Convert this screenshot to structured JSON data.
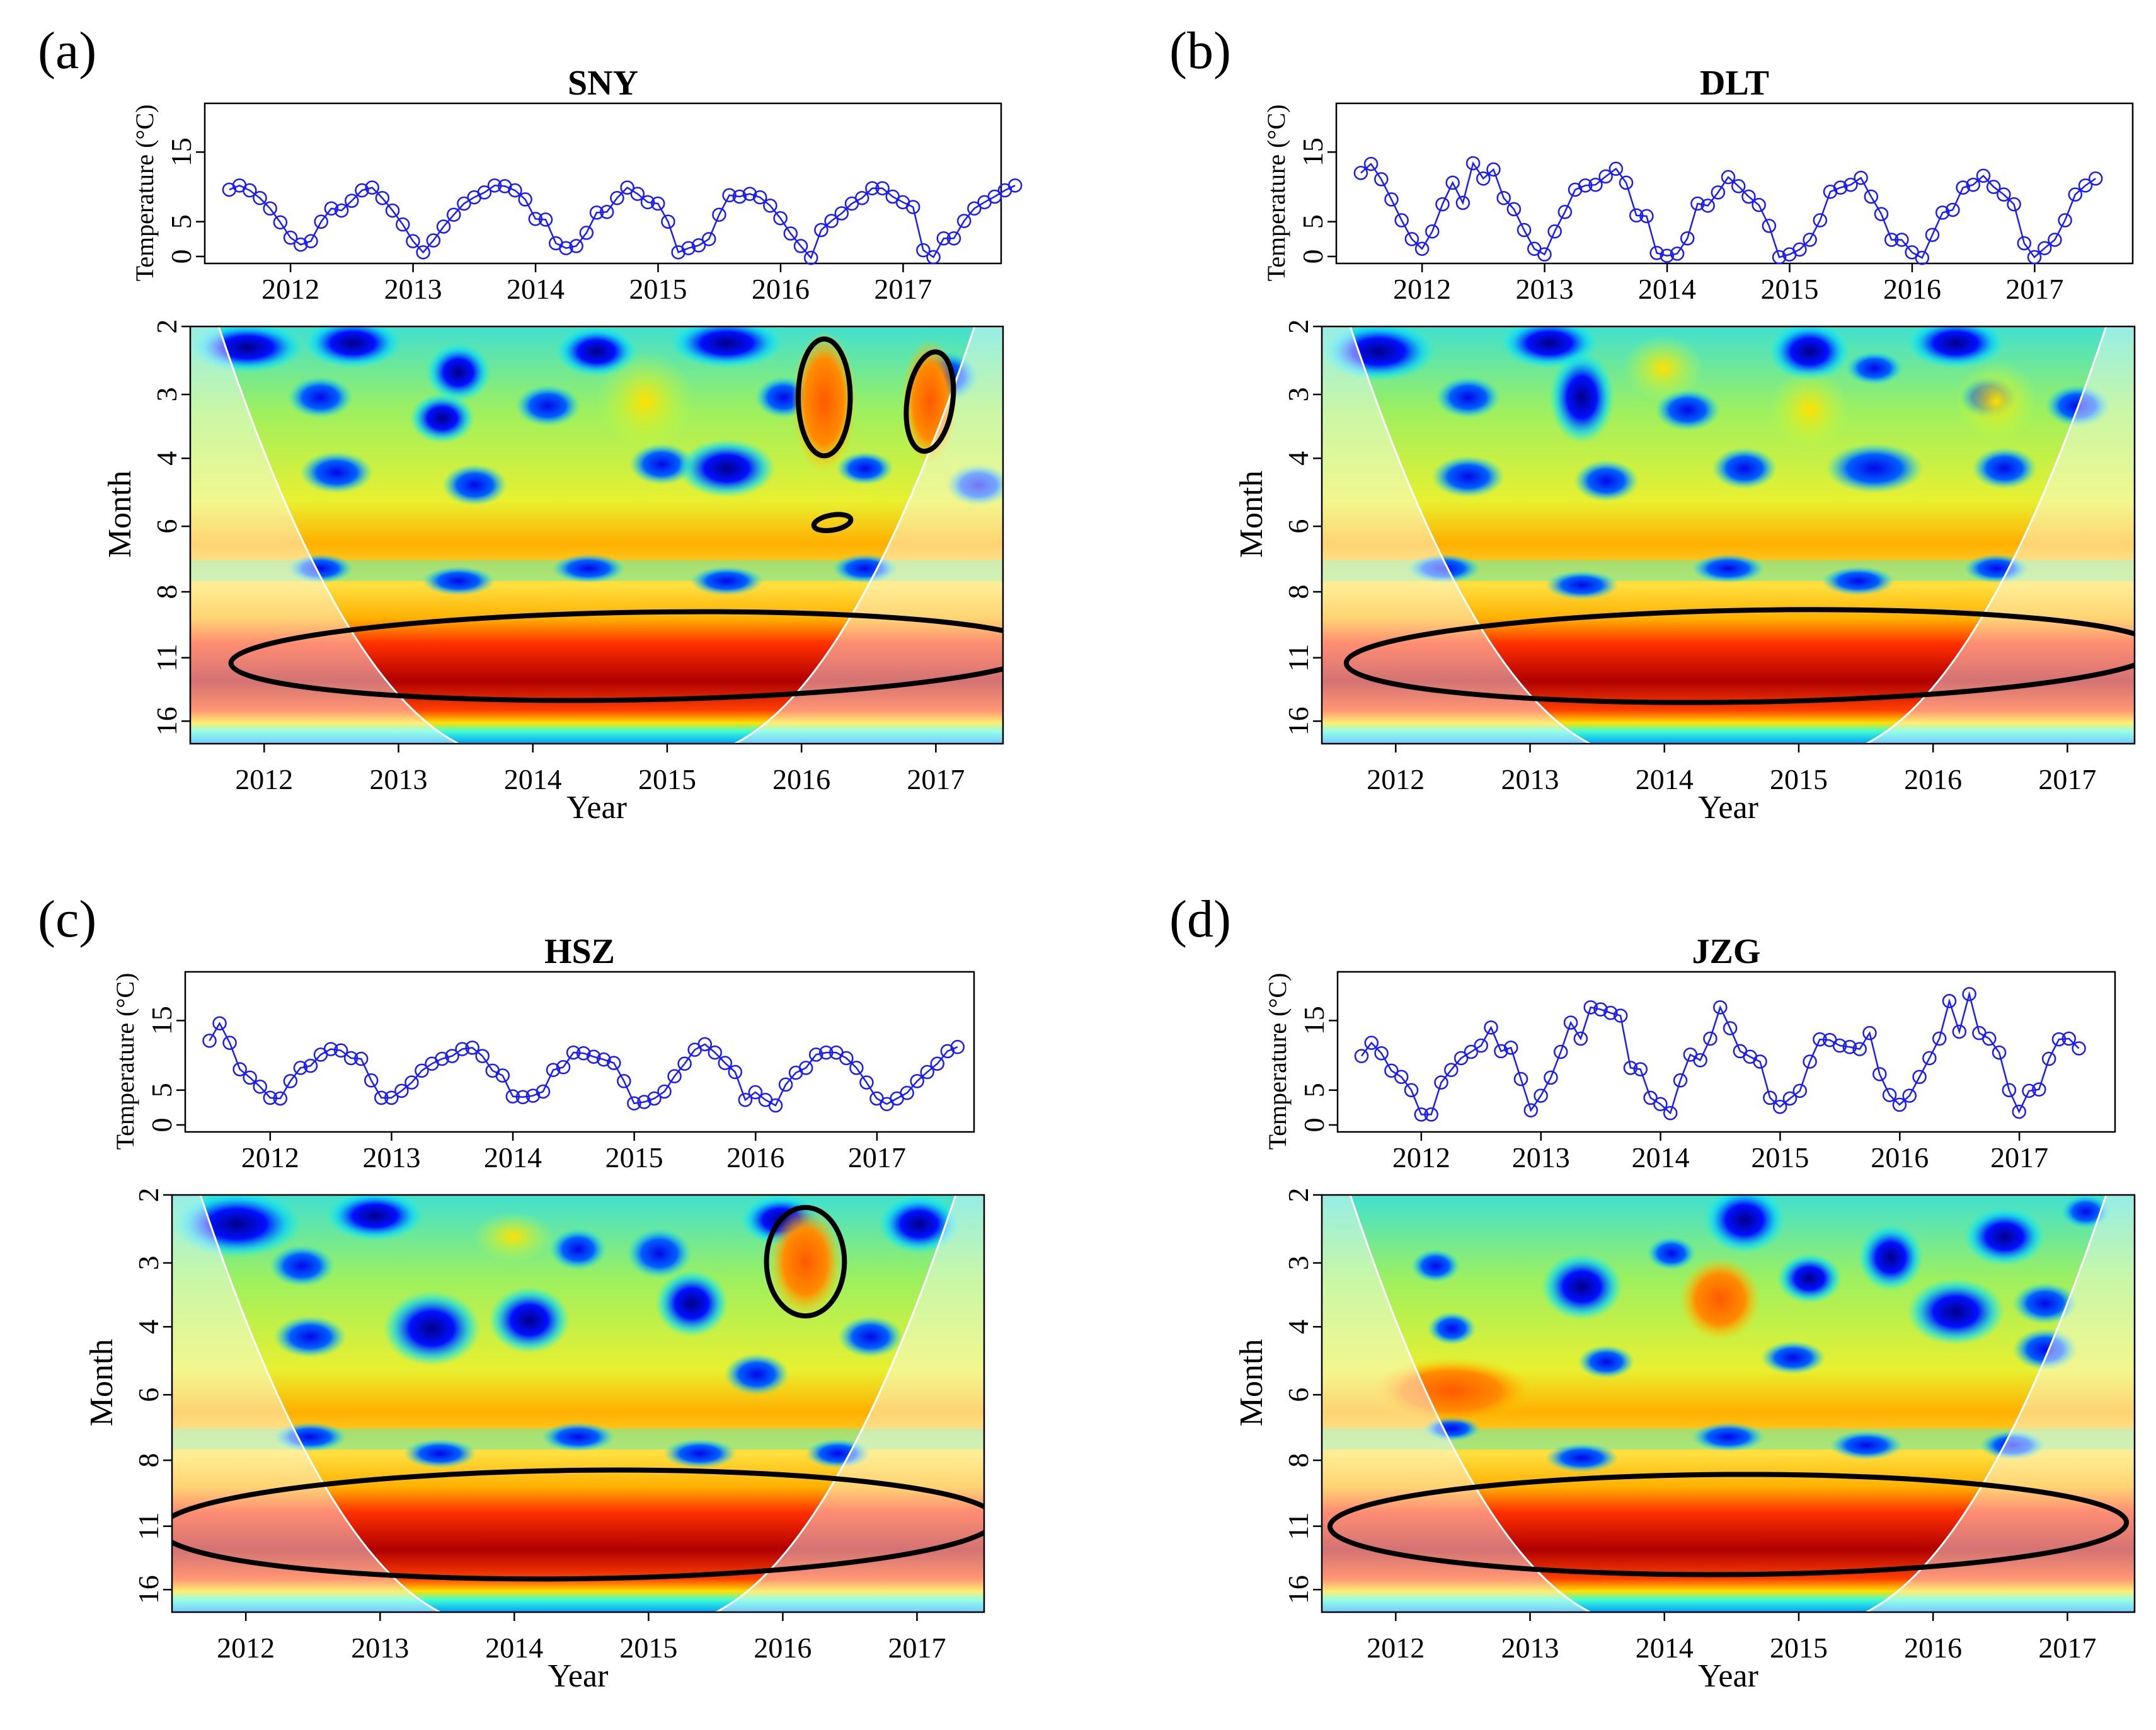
{
  "chart_data": [
    {
      "panel_label": "(a)",
      "type": "line",
      "title": "SNY",
      "time_series": {
        "ylabel": "Temperature (°C)",
        "yticks": [
          0,
          5,
          15
        ],
        "ylim": [
          -1,
          22
        ],
        "xticks": [
          2012,
          2013,
          2014,
          2015,
          2016,
          2017
        ],
        "xlim": [
          2011.3,
          2017.8
        ],
        "x_start": 2011.5,
        "x_step": 0.0833,
        "values": [
          9.6,
          10.2,
          9.5,
          8.4,
          6.9,
          4.9,
          2.7,
          1.7,
          2.2,
          5.0,
          6.9,
          6.6,
          8.0,
          9.5,
          9.9,
          8.4,
          6.6,
          4.6,
          2.2,
          0.6,
          2.3,
          4.3,
          6.0,
          7.6,
          8.5,
          9.2,
          10.2,
          10.1,
          9.5,
          8.2,
          5.4,
          5.3,
          1.9,
          1.2,
          1.5,
          3.4,
          6.3,
          6.4,
          8.4,
          9.9,
          9.0,
          7.8,
          7.6,
          5.0,
          0.6,
          1.2,
          1.6,
          2.5,
          6.0,
          8.8,
          8.6,
          9.0,
          8.5,
          7.3,
          5.5,
          3.3,
          1.5,
          -0.2,
          3.8,
          5.1,
          6.2,
          7.6,
          8.4,
          9.8,
          9.8,
          8.6,
          7.8,
          7.1,
          0.9,
          -0.1,
          2.6,
          2.6,
          5.1,
          6.9,
          7.8,
          8.6,
          9.5,
          10.2
        ]
      },
      "wavelet": {
        "type": "heatmap",
        "xlabel": "Year",
        "ylabel": "Month",
        "xticks": [
          2012,
          2013,
          2014,
          2015,
          2016,
          2017
        ],
        "yticks": [
          2,
          3,
          4,
          6,
          8,
          11,
          16
        ],
        "xlim": [
          2011.45,
          2017.5
        ],
        "significant_regions": [
          "band 9-16 months across 2011.8-2017.5",
          "2.3-3.8 months near 2016.1",
          "2.5-3.7 months near 2017.0",
          "~5.5 months near 2016.1"
        ]
      }
    },
    {
      "panel_label": "(b)",
      "type": "line",
      "title": "DLT",
      "time_series": {
        "ylabel": "Temperature (°C)",
        "yticks": [
          0,
          5,
          15
        ],
        "ylim": [
          -1,
          22
        ],
        "xticks": [
          2012,
          2013,
          2014,
          2015,
          2016,
          2017
        ],
        "xlim": [
          2011.3,
          2017.8
        ],
        "x_start": 2011.5,
        "x_step": 0.0833,
        "values": [
          12.0,
          13.3,
          11.1,
          8.2,
          5.2,
          2.5,
          1.1,
          3.6,
          7.5,
          10.6,
          7.7,
          13.4,
          11.2,
          12.5,
          8.4,
          6.8,
          3.8,
          1.1,
          0.3,
          3.6,
          6.4,
          9.6,
          10.2,
          10.3,
          11.5,
          12.6,
          10.6,
          5.9,
          5.8,
          0.5,
          0.1,
          0.4,
          2.6,
          7.6,
          7.3,
          9.2,
          11.4,
          10.1,
          8.6,
          7.4,
          4.4,
          -0.1,
          0.3,
          1.0,
          2.4,
          5.2,
          9.3,
          9.9,
          10.3,
          11.3,
          8.6,
          6.1,
          2.4,
          2.4,
          0.6,
          -0.2,
          3.1,
          6.3,
          6.7,
          9.9,
          10.3,
          11.6,
          10.0,
          8.9,
          7.5,
          1.9,
          -0.1,
          1.2,
          2.4,
          5.2,
          8.9,
          10.2,
          11.2
        ]
      },
      "wavelet": {
        "type": "heatmap",
        "xlabel": "Year",
        "ylabel": "Month",
        "xticks": [
          2012,
          2013,
          2014,
          2015,
          2016,
          2017
        ],
        "yticks": [
          2,
          3,
          4,
          6,
          8,
          11,
          16
        ],
        "xlim": [
          2011.45,
          2017.5
        ],
        "significant_regions": [
          "band 9-16 months across 2011.8-2017.5"
        ]
      }
    },
    {
      "panel_label": "(c)",
      "type": "line",
      "title": "HSZ",
      "time_series": {
        "ylabel": "Temperature (°C)",
        "yticks": [
          0,
          5,
          15
        ],
        "ylim": [
          -1,
          22
        ],
        "xticks": [
          2012,
          2013,
          2014,
          2015,
          2016,
          2017
        ],
        "xlim": [
          2011.3,
          2017.8
        ],
        "x_start": 2011.5,
        "x_step": 0.0833,
        "values": [
          12.1,
          14.6,
          11.8,
          8.0,
          6.8,
          5.5,
          3.9,
          3.8,
          6.3,
          8.2,
          8.5,
          10.1,
          10.9,
          10.7,
          9.6,
          9.5,
          6.4,
          3.9,
          3.9,
          4.9,
          6.1,
          7.8,
          8.8,
          9.5,
          9.9,
          10.9,
          11.1,
          9.9,
          7.8,
          7.1,
          4.1,
          4.0,
          4.2,
          4.8,
          7.9,
          8.3,
          10.4,
          10.3,
          9.8,
          9.4,
          8.9,
          6.3,
          3.1,
          3.3,
          3.8,
          4.8,
          7.0,
          8.8,
          10.8,
          11.6,
          10.4,
          8.9,
          7.6,
          3.6,
          4.7,
          3.6,
          2.8,
          5.8,
          7.5,
          8.2,
          10.1,
          10.4,
          10.4,
          9.6,
          8.2,
          6.1,
          3.8,
          3.0,
          3.8,
          4.6,
          6.3,
          7.6,
          8.8,
          10.6,
          11.2
        ]
      },
      "wavelet": {
        "type": "heatmap",
        "xlabel": "Year",
        "ylabel": "Month",
        "xticks": [
          2012,
          2013,
          2014,
          2015,
          2016,
          2017
        ],
        "yticks": [
          2,
          3,
          4,
          6,
          8,
          11,
          16
        ],
        "xlim": [
          2011.45,
          2017.5
        ],
        "significant_regions": [
          "band 9-16 months across 2011.5-2017.5",
          "2.3-3.6 months near 2015.9"
        ]
      }
    },
    {
      "panel_label": "(d)",
      "type": "line",
      "title": "JZG",
      "time_series": {
        "ylabel": "Temperature (°C)",
        "yticks": [
          0,
          5,
          15
        ],
        "ylim": [
          -1,
          22
        ],
        "xticks": [
          2012,
          2013,
          2014,
          2015,
          2016,
          2017
        ],
        "xlim": [
          2011.3,
          2017.8
        ],
        "x_start": 2011.5,
        "x_step": 0.0833,
        "values": [
          9.9,
          11.8,
          10.3,
          7.8,
          6.9,
          5.0,
          1.5,
          1.5,
          6.1,
          7.9,
          9.6,
          10.5,
          11.4,
          14.0,
          10.6,
          11.1,
          6.6,
          2.1,
          4.2,
          6.8,
          10.5,
          14.7,
          12.4,
          16.9,
          16.6,
          16.1,
          15.7,
          8.2,
          8.0,
          3.9,
          3.0,
          1.7,
          6.4,
          10.1,
          9.3,
          12.4,
          16.9,
          13.9,
          10.6,
          9.8,
          9.1,
          3.9,
          2.6,
          3.8,
          4.9,
          9.1,
          12.3,
          12.2,
          11.4,
          11.2,
          10.9,
          13.2,
          7.3,
          4.3,
          2.9,
          4.2,
          6.9,
          9.6,
          12.4,
          17.8,
          13.4,
          18.8,
          13.2,
          12.4,
          10.4,
          5.0,
          1.9,
          4.9,
          5.1,
          9.5,
          12.3,
          12.4,
          11.0
        ]
      },
      "wavelet": {
        "type": "heatmap",
        "xlabel": "Year",
        "ylabel": "Month",
        "xticks": [
          2012,
          2013,
          2014,
          2015,
          2016,
          2017
        ],
        "yticks": [
          2,
          3,
          4,
          6,
          8,
          11,
          16
        ],
        "xlim": [
          2011.45,
          2017.5
        ],
        "significant_regions": [
          "band 9-16 months across 2011.7-2017.3"
        ]
      }
    }
  ]
}
